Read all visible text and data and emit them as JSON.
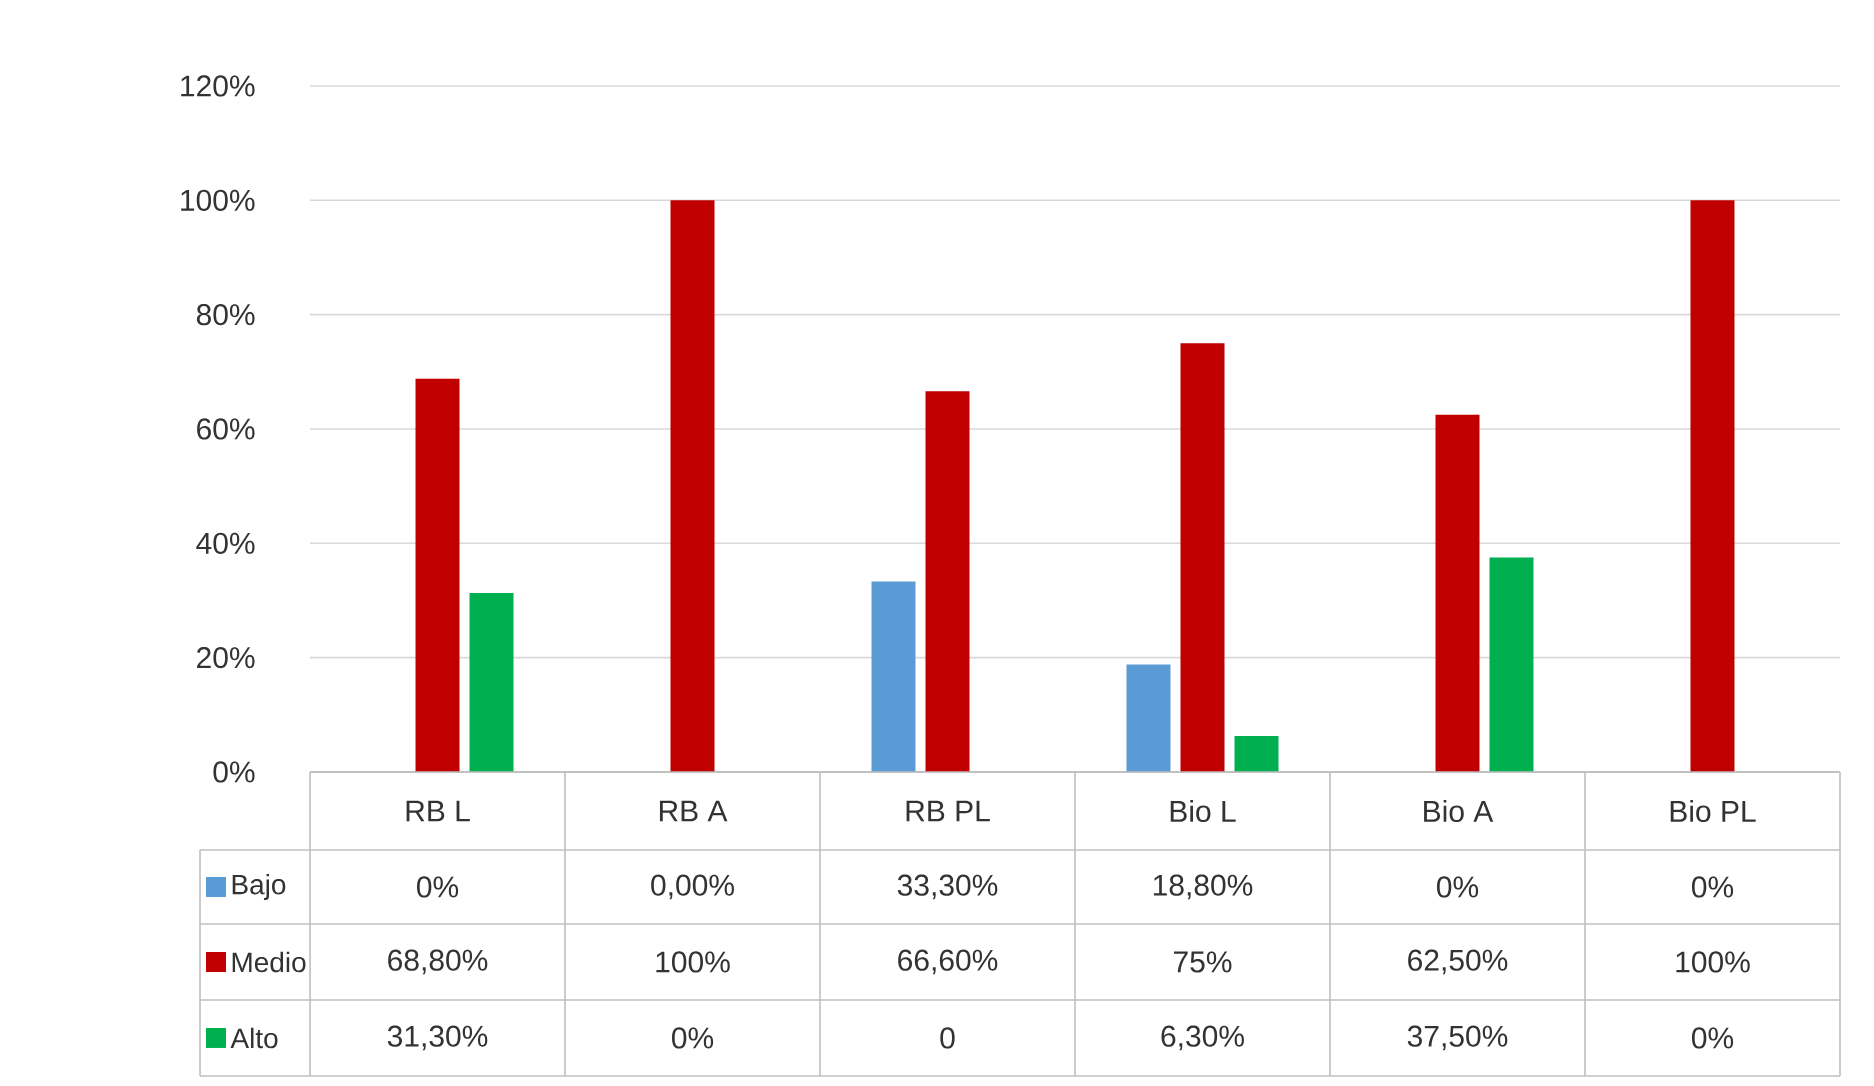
{
  "chart_data": {
    "type": "bar",
    "categories": [
      "RB L",
      "RB A",
      "RB PL",
      "Bio L",
      "Bio A",
      "Bio PL"
    ],
    "series": [
      {
        "name": "Bajo",
        "color": "#5b9bd5",
        "values": [
          0,
          0,
          33.3,
          18.8,
          0,
          0
        ],
        "value_labels": [
          "0%",
          "0,00%",
          "33,30%",
          "18,80%",
          "0%",
          "0%"
        ]
      },
      {
        "name": "Medio",
        "color": "#c00000",
        "values": [
          68.8,
          100,
          66.6,
          75,
          62.5,
          100
        ],
        "value_labels": [
          "68,80%",
          "100%",
          "66,60%",
          "75%",
          "62,50%",
          "100%"
        ]
      },
      {
        "name": "Alto",
        "color": "#00b050",
        "values": [
          31.3,
          0,
          0,
          6.3,
          37.5,
          0
        ],
        "value_labels": [
          "31,30%",
          "0%",
          "0",
          "6,30%",
          "37,50%",
          "0%"
        ]
      }
    ],
    "ylim": [
      0,
      120
    ],
    "yticks": [
      {
        "value": 0,
        "label": "0%"
      },
      {
        "value": 20,
        "label": "20%"
      },
      {
        "value": 40,
        "label": "40%"
      },
      {
        "value": 60,
        "label": "60%"
      },
      {
        "value": 80,
        "label": "80%"
      },
      {
        "value": 100,
        "label": "100%"
      },
      {
        "value": 120,
        "label": "120%"
      }
    ],
    "grid": "y",
    "legend": "bottom"
  }
}
